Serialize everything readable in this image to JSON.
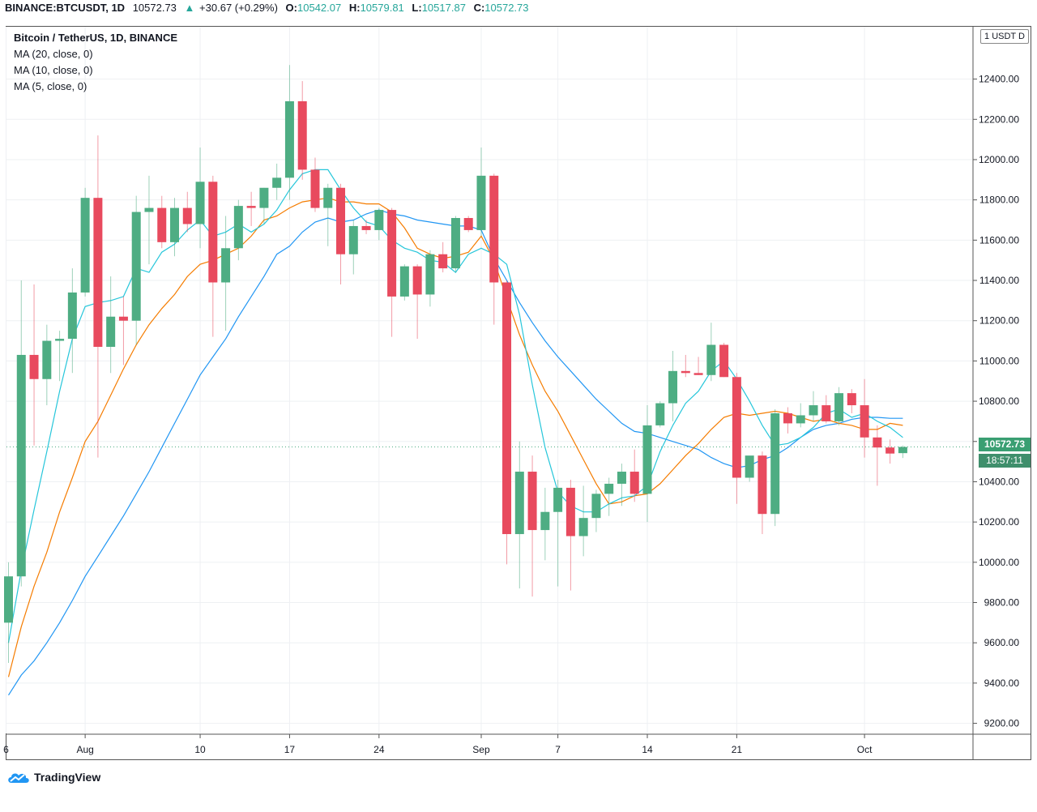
{
  "header": {
    "symbol": "BINANCE:BTCUSDT, 1D",
    "last": "10572.73",
    "change": "+30.67 (+0.29%)",
    "o_label": "O:",
    "o_value": "10542.07",
    "h_label": "H:",
    "h_value": "10579.81",
    "l_label": "L:",
    "l_value": "10517.87",
    "c_label": "C:",
    "c_value": "10572.73"
  },
  "legend": {
    "title": "Bitcoin / TetherUS, 1D, BINANCE",
    "ma20": "MA (20, close, 0)",
    "ma10": "MA (10, close, 0)",
    "ma5": "MA (5, close, 0)"
  },
  "price_axis": {
    "currency": "1 USDT D",
    "last_price": "10572.73",
    "countdown": "18:57:11"
  },
  "brand": "TradingView",
  "colors": {
    "up": "#4ead83",
    "down": "#e84a5e",
    "ma20": "#2196f3",
    "ma10": "#f57c00",
    "ma5": "#26c6da",
    "grid": "#eef0f3",
    "accent": "#26a69a"
  },
  "chart_data": {
    "type": "candlestick",
    "ylim": [
      9150,
      12660
    ],
    "y_ticks": [
      9200,
      9400,
      9600,
      9800,
      10000,
      10200,
      10400,
      10600,
      10800,
      11000,
      11200,
      11400,
      11600,
      11800,
      12000,
      12200,
      12400
    ],
    "x_ticks": [
      {
        "label": "6",
        "index": 0
      },
      {
        "label": "Aug",
        "index": 6
      },
      {
        "label": "10",
        "index": 15
      },
      {
        "label": "17",
        "index": 22
      },
      {
        "label": "24",
        "index": 29
      },
      {
        "label": "Sep",
        "index": 37
      },
      {
        "label": "7",
        "index": 43
      },
      {
        "label": "14",
        "index": 50
      },
      {
        "label": "21",
        "index": 57
      },
      {
        "label": "Oct",
        "index": 67
      }
    ],
    "candles": [
      {
        "o": 9700,
        "h": 10000,
        "l": 9500,
        "c": 9930
      },
      {
        "o": 9930,
        "h": 11400,
        "l": 9880,
        "c": 11030
      },
      {
        "o": 11030,
        "h": 11380,
        "l": 10580,
        "c": 10910
      },
      {
        "o": 10910,
        "h": 11180,
        "l": 10780,
        "c": 11100
      },
      {
        "o": 11100,
        "h": 11150,
        "l": 10900,
        "c": 11110
      },
      {
        "o": 11110,
        "h": 11460,
        "l": 10940,
        "c": 11340
      },
      {
        "o": 11340,
        "h": 11860,
        "l": 11320,
        "c": 11810
      },
      {
        "o": 11810,
        "h": 12120,
        "l": 10520,
        "c": 11070
      },
      {
        "o": 11070,
        "h": 11420,
        "l": 10940,
        "c": 11220
      },
      {
        "o": 11220,
        "h": 11320,
        "l": 10980,
        "c": 11200
      },
      {
        "o": 11200,
        "h": 11820,
        "l": 11080,
        "c": 11740
      },
      {
        "o": 11740,
        "h": 11920,
        "l": 11480,
        "c": 11760
      },
      {
        "o": 11760,
        "h": 11820,
        "l": 11560,
        "c": 11590
      },
      {
        "o": 11590,
        "h": 11810,
        "l": 11520,
        "c": 11760
      },
      {
        "o": 11760,
        "h": 11840,
        "l": 11640,
        "c": 11680
      },
      {
        "o": 11680,
        "h": 12060,
        "l": 11560,
        "c": 11890
      },
      {
        "o": 11890,
        "h": 11920,
        "l": 11120,
        "c": 11390
      },
      {
        "o": 11390,
        "h": 11720,
        "l": 11150,
        "c": 11560
      },
      {
        "o": 11560,
        "h": 11800,
        "l": 11500,
        "c": 11770
      },
      {
        "o": 11770,
        "h": 11840,
        "l": 11670,
        "c": 11760
      },
      {
        "o": 11760,
        "h": 11860,
        "l": 11680,
        "c": 11860
      },
      {
        "o": 11860,
        "h": 11980,
        "l": 11800,
        "c": 11910
      },
      {
        "o": 11910,
        "h": 12470,
        "l": 11800,
        "c": 12290
      },
      {
        "o": 12290,
        "h": 12390,
        "l": 11900,
        "c": 11950
      },
      {
        "o": 11950,
        "h": 12010,
        "l": 11740,
        "c": 11760
      },
      {
        "o": 11760,
        "h": 11880,
        "l": 11570,
        "c": 11860
      },
      {
        "o": 11860,
        "h": 11880,
        "l": 11380,
        "c": 11530
      },
      {
        "o": 11530,
        "h": 11700,
        "l": 11430,
        "c": 11670
      },
      {
        "o": 11670,
        "h": 11700,
        "l": 11630,
        "c": 11650
      },
      {
        "o": 11650,
        "h": 11760,
        "l": 11600,
        "c": 11750
      },
      {
        "o": 11750,
        "h": 11760,
        "l": 11120,
        "c": 11320
      },
      {
        "o": 11320,
        "h": 11480,
        "l": 11300,
        "c": 11470
      },
      {
        "o": 11470,
        "h": 11480,
        "l": 11110,
        "c": 11330
      },
      {
        "o": 11330,
        "h": 11550,
        "l": 11270,
        "c": 11530
      },
      {
        "o": 11530,
        "h": 11590,
        "l": 11440,
        "c": 11460
      },
      {
        "o": 11460,
        "h": 11720,
        "l": 11440,
        "c": 11710
      },
      {
        "o": 11710,
        "h": 11720,
        "l": 11640,
        "c": 11650
      },
      {
        "o": 11650,
        "h": 12060,
        "l": 11620,
        "c": 11920
      },
      {
        "o": 11920,
        "h": 11930,
        "l": 11180,
        "c": 11390
      },
      {
        "o": 11390,
        "h": 11400,
        "l": 9990,
        "c": 10140
      },
      {
        "o": 10140,
        "h": 10600,
        "l": 9870,
        "c": 10450
      },
      {
        "o": 10450,
        "h": 10530,
        "l": 9830,
        "c": 10160
      },
      {
        "o": 10160,
        "h": 10370,
        "l": 10010,
        "c": 10250
      },
      {
        "o": 10250,
        "h": 10410,
        "l": 9880,
        "c": 10370
      },
      {
        "o": 10370,
        "h": 10410,
        "l": 9860,
        "c": 10130
      },
      {
        "o": 10130,
        "h": 10380,
        "l": 10030,
        "c": 10220
      },
      {
        "o": 10220,
        "h": 10360,
        "l": 10150,
        "c": 10340
      },
      {
        "o": 10340,
        "h": 10420,
        "l": 10230,
        "c": 10390
      },
      {
        "o": 10390,
        "h": 10490,
        "l": 10280,
        "c": 10450
      },
      {
        "o": 10450,
        "h": 10560,
        "l": 10300,
        "c": 10340
      },
      {
        "o": 10340,
        "h": 10780,
        "l": 10200,
        "c": 10680
      },
      {
        "o": 10680,
        "h": 10800,
        "l": 10670,
        "c": 10790
      },
      {
        "o": 10790,
        "h": 11050,
        "l": 10700,
        "c": 10950
      },
      {
        "o": 10950,
        "h": 11030,
        "l": 10920,
        "c": 10940
      },
      {
        "o": 10940,
        "h": 11020,
        "l": 10930,
        "c": 10930
      },
      {
        "o": 10930,
        "h": 11190,
        "l": 10900,
        "c": 11080
      },
      {
        "o": 11080,
        "h": 11090,
        "l": 10920,
        "c": 10920
      },
      {
        "o": 10920,
        "h": 10940,
        "l": 10290,
        "c": 10420
      },
      {
        "o": 10420,
        "h": 10520,
        "l": 10400,
        "c": 10530
      },
      {
        "o": 10530,
        "h": 10550,
        "l": 10140,
        "c": 10240
      },
      {
        "o": 10240,
        "h": 10760,
        "l": 10180,
        "c": 10740
      },
      {
        "o": 10740,
        "h": 10770,
        "l": 10640,
        "c": 10690
      },
      {
        "o": 10690,
        "h": 10790,
        "l": 10670,
        "c": 10730
      },
      {
        "o": 10730,
        "h": 10850,
        "l": 10700,
        "c": 10780
      },
      {
        "o": 10780,
        "h": 10830,
        "l": 10690,
        "c": 10700
      },
      {
        "o": 10700,
        "h": 10870,
        "l": 10680,
        "c": 10840
      },
      {
        "o": 10840,
        "h": 10860,
        "l": 10740,
        "c": 10780
      },
      {
        "o": 10780,
        "h": 10910,
        "l": 10520,
        "c": 10620
      },
      {
        "o": 10620,
        "h": 10680,
        "l": 10380,
        "c": 10570
      },
      {
        "o": 10570,
        "h": 10610,
        "l": 10490,
        "c": 10540
      },
      {
        "o": 10542.07,
        "h": 10579.81,
        "l": 10517.87,
        "c": 10572.73
      }
    ],
    "ma_series": [
      {
        "key": "ma20",
        "values": [
          9340,
          9440,
          9510,
          9600,
          9700,
          9810,
          9930,
          10030,
          10130,
          10230,
          10340,
          10450,
          10570,
          10690,
          10810,
          10930,
          11020,
          11110,
          11220,
          11320,
          11420,
          11530,
          11570,
          11640,
          11690,
          11710,
          11690,
          11700,
          11730,
          11750,
          11730,
          11720,
          11700,
          11690,
          11680,
          11670,
          11670,
          11650,
          11510,
          11400,
          11290,
          11190,
          11100,
          11020,
          10950,
          10880,
          10810,
          10750,
          10690,
          10650,
          10640,
          10620,
          10600,
          10580,
          10560,
          10520,
          10490,
          10470,
          10480,
          10510,
          10530,
          10570,
          10620,
          10660,
          10680,
          10690,
          10710,
          10720,
          10720,
          10715,
          10715
        ]
      },
      {
        "key": "ma10",
        "values": [
          9430,
          9680,
          9880,
          10050,
          10250,
          10420,
          10600,
          10700,
          10830,
          10960,
          11080,
          11180,
          11260,
          11330,
          11420,
          11480,
          11500,
          11530,
          11560,
          11620,
          11700,
          11720,
          11760,
          11790,
          11800,
          11810,
          11790,
          11790,
          11780,
          11780,
          11740,
          11660,
          11560,
          11530,
          11510,
          11520,
          11540,
          11620,
          11500,
          11310,
          11130,
          10980,
          10850,
          10750,
          10630,
          10510,
          10390,
          10290,
          10300,
          10330,
          10340,
          10390,
          10460,
          10530,
          10590,
          10660,
          10720,
          10740,
          10730,
          10740,
          10750,
          10740,
          10720,
          10700,
          10710,
          10690,
          10680,
          10660,
          10660,
          10690,
          10680
        ]
      },
      {
        "key": "ma5",
        "values": [
          9600,
          9960,
          10260,
          10550,
          10850,
          11110,
          11270,
          11290,
          11300,
          11320,
          11460,
          11440,
          11540,
          11580,
          11650,
          11700,
          11620,
          11640,
          11680,
          11640,
          11680,
          11750,
          11850,
          11930,
          11950,
          11950,
          11850,
          11760,
          11690,
          11670,
          11600,
          11560,
          11540,
          11500,
          11490,
          11440,
          11530,
          11560,
          11530,
          11480,
          11230,
          10880,
          10570,
          10350,
          10280,
          10250,
          10250,
          10290,
          10320,
          10330,
          10380,
          10550,
          10680,
          10790,
          10850,
          10950,
          11000,
          10910,
          10800,
          10680,
          10580,
          10590,
          10620,
          10670,
          10740,
          10760,
          10720,
          10740,
          10700,
          10670,
          10620
        ]
      }
    ]
  }
}
